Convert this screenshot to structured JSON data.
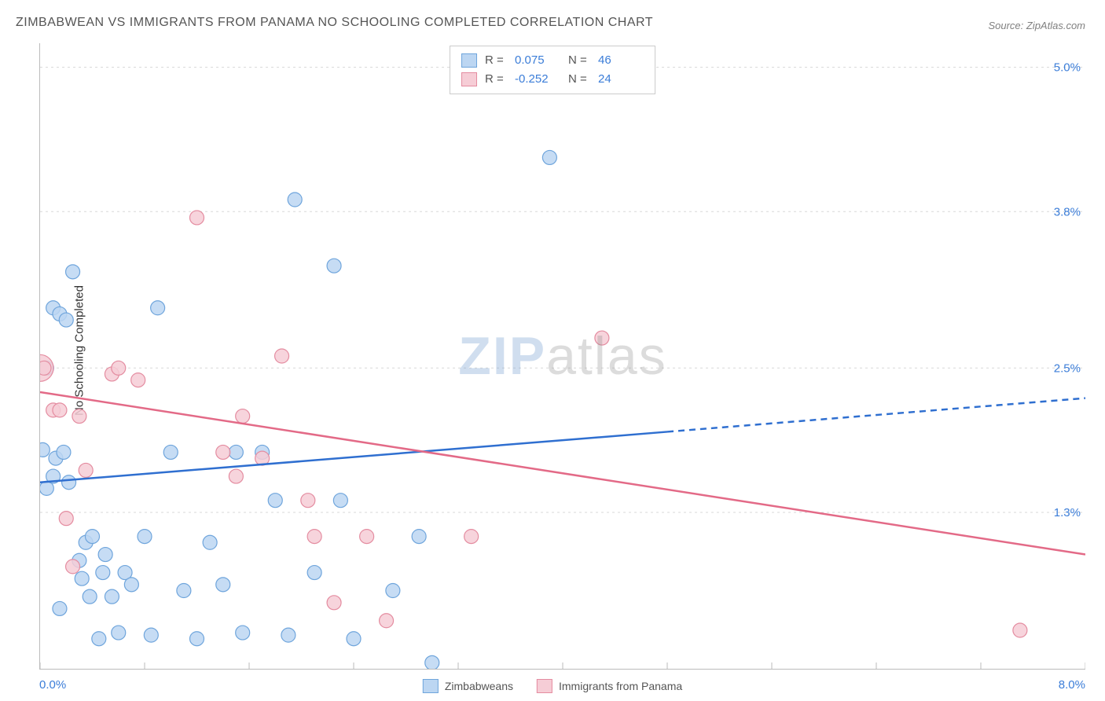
{
  "title": "ZIMBABWEAN VS IMMIGRANTS FROM PANAMA NO SCHOOLING COMPLETED CORRELATION CHART",
  "source": "Source: ZipAtlas.com",
  "y_axis_label": "No Schooling Completed",
  "watermark": {
    "part1": "ZIP",
    "part2": "atlas"
  },
  "chart": {
    "type": "scatter",
    "background_color": "#ffffff",
    "grid_color": "#d8d8d8",
    "axis_color": "#bbbbbb",
    "text_color": "#555555",
    "value_color": "#3b7dd8",
    "xlim": [
      0.0,
      8.0
    ],
    "ylim": [
      0.0,
      5.2
    ],
    "x_ticks": [
      0.0,
      0.8,
      1.6,
      2.4,
      3.2,
      4.0,
      4.8,
      5.6,
      6.4,
      7.2,
      8.0
    ],
    "x_tick_labels": {
      "left": "0.0%",
      "right": "8.0%"
    },
    "y_ticks": [
      1.3,
      2.5,
      3.8,
      5.0
    ],
    "y_tick_labels": [
      "1.3%",
      "2.5%",
      "3.8%",
      "5.0%"
    ],
    "y_label_fontsize": 15,
    "tick_label_fontsize": 15,
    "marker_radius": 9,
    "marker_stroke_width": 1.2,
    "trend_line_width": 2.5
  },
  "series": [
    {
      "name": "Zimbabweans",
      "fill_color": "#bcd6f2",
      "stroke_color": "#6fa5dc",
      "line_color": "#2f6fd0",
      "R": "0.075",
      "N": "46",
      "trend": {
        "x0": 0.0,
        "y0": 1.55,
        "x1": 8.0,
        "y1": 2.25,
        "solid_until_x": 4.8
      },
      "points": [
        [
          0.02,
          1.82
        ],
        [
          0.05,
          2.5
        ],
        [
          0.05,
          1.5
        ],
        [
          0.1,
          1.6
        ],
        [
          0.1,
          3.0
        ],
        [
          0.12,
          1.75
        ],
        [
          0.15,
          2.95
        ],
        [
          0.18,
          1.8
        ],
        [
          0.2,
          2.9
        ],
        [
          0.22,
          1.55
        ],
        [
          0.25,
          3.3
        ],
        [
          0.3,
          0.9
        ],
        [
          0.32,
          0.75
        ],
        [
          0.35,
          1.05
        ],
        [
          0.38,
          0.6
        ],
        [
          0.4,
          1.1
        ],
        [
          0.45,
          0.25
        ],
        [
          0.48,
          0.8
        ],
        [
          0.5,
          0.95
        ],
        [
          0.55,
          0.6
        ],
        [
          0.6,
          0.3
        ],
        [
          0.65,
          0.8
        ],
        [
          0.7,
          0.7
        ],
        [
          0.8,
          1.1
        ],
        [
          0.85,
          0.28
        ],
        [
          0.9,
          3.0
        ],
        [
          1.0,
          1.8
        ],
        [
          1.1,
          0.65
        ],
        [
          1.2,
          0.25
        ],
        [
          1.3,
          1.05
        ],
        [
          1.4,
          0.7
        ],
        [
          1.5,
          1.8
        ],
        [
          1.55,
          0.3
        ],
        [
          1.7,
          1.8
        ],
        [
          1.8,
          1.4
        ],
        [
          1.9,
          0.28
        ],
        [
          1.95,
          3.9
        ],
        [
          2.1,
          0.8
        ],
        [
          2.25,
          3.35
        ],
        [
          2.3,
          1.4
        ],
        [
          2.4,
          0.25
        ],
        [
          2.7,
          0.65
        ],
        [
          2.9,
          1.1
        ],
        [
          3.0,
          0.05
        ],
        [
          3.9,
          4.25
        ],
        [
          0.15,
          0.5
        ]
      ]
    },
    {
      "name": "Immigrants from Panama",
      "fill_color": "#f6cdd6",
      "stroke_color": "#e48ca0",
      "line_color": "#e36a87",
      "R": "-0.252",
      "N": "24",
      "trend": {
        "x0": 0.0,
        "y0": 2.3,
        "x1": 8.0,
        "y1": 0.95,
        "solid_until_x": 8.0
      },
      "points": [
        [
          0.03,
          2.5
        ],
        [
          0.1,
          2.15
        ],
        [
          0.15,
          2.15
        ],
        [
          0.2,
          1.25
        ],
        [
          0.25,
          0.85
        ],
        [
          0.3,
          2.1
        ],
        [
          0.35,
          1.65
        ],
        [
          0.55,
          2.45
        ],
        [
          0.6,
          2.5
        ],
        [
          0.75,
          2.4
        ],
        [
          1.2,
          3.75
        ],
        [
          1.4,
          1.8
        ],
        [
          1.5,
          1.6
        ],
        [
          1.55,
          2.1
        ],
        [
          1.7,
          1.75
        ],
        [
          1.85,
          2.6
        ],
        [
          2.05,
          1.4
        ],
        [
          2.1,
          1.1
        ],
        [
          2.25,
          0.55
        ],
        [
          2.5,
          1.1
        ],
        [
          2.65,
          0.4
        ],
        [
          3.3,
          1.1
        ],
        [
          4.3,
          2.75
        ],
        [
          7.5,
          0.32
        ]
      ],
      "large_points": [
        {
          "x": 0.0,
          "y": 2.5,
          "r": 17
        }
      ]
    }
  ],
  "stats_box": {
    "rows": [
      {
        "swatch_fill": "#bcd6f2",
        "swatch_stroke": "#6fa5dc",
        "r_label": "R =",
        "r_value": "0.075",
        "n_label": "N =",
        "n_value": "46"
      },
      {
        "swatch_fill": "#f6cdd6",
        "swatch_stroke": "#e48ca0",
        "r_label": "R =",
        "r_value": "-0.252",
        "n_label": "N =",
        "n_value": "24"
      }
    ]
  },
  "bottom_legend": [
    {
      "fill": "#bcd6f2",
      "stroke": "#6fa5dc",
      "label": "Zimbabweans"
    },
    {
      "fill": "#f6cdd6",
      "stroke": "#e48ca0",
      "label": "Immigrants from Panama"
    }
  ]
}
